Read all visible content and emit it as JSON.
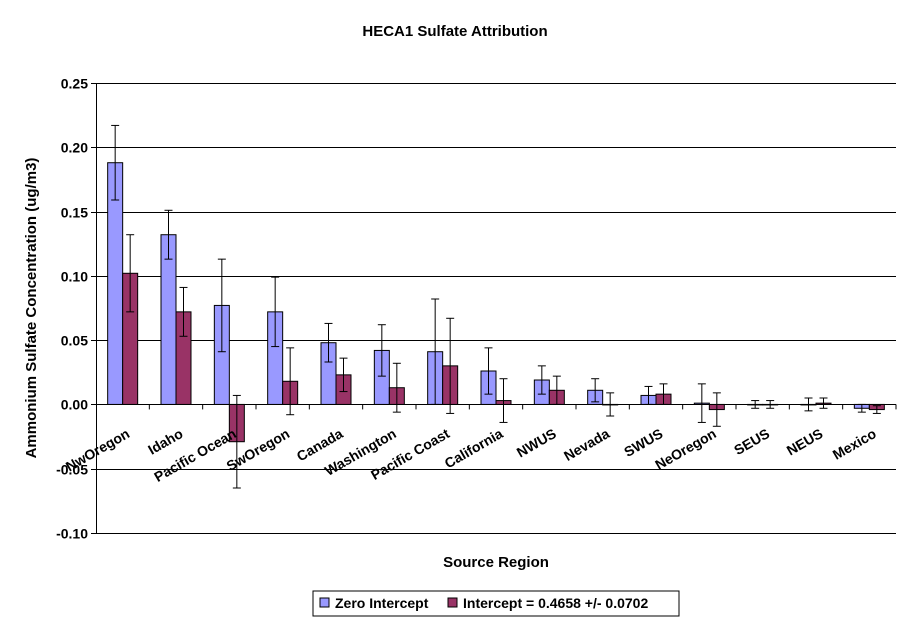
{
  "chart_data": {
    "type": "bar",
    "title": "HECA1 Sulfate Attribution",
    "xlabel": "Source Region",
    "ylabel": "Ammonium Sulfate Concentration (ug/m3)",
    "ylim": [
      -0.1,
      0.25
    ],
    "yticks": [
      "0.25",
      "0.20",
      "0.15",
      "0.10",
      "0.05",
      "0.00",
      "-0.05",
      "-0.10"
    ],
    "ytick_values": [
      0.25,
      0.2,
      0.15,
      0.1,
      0.05,
      0.0,
      -0.05,
      -0.1
    ],
    "grid": true,
    "legend_position": "bottom",
    "categories": [
      "NwOregon",
      "Idaho",
      "Pacific Ocean",
      "SwOregon",
      "Canada",
      "Washington",
      "Pacific Coast",
      "California",
      "NWUS",
      "Nevada",
      "SWUS",
      "NeOregon",
      "SEUS",
      "NEUS",
      "Mexico"
    ],
    "series": [
      {
        "name": "Zero Intercept",
        "color": "#9999ff",
        "values": [
          0.188,
          0.132,
          0.077,
          0.072,
          0.048,
          0.042,
          0.041,
          0.026,
          0.019,
          0.011,
          0.007,
          0.001,
          0.0,
          0.0,
          -0.003
        ],
        "errors": [
          0.029,
          0.019,
          0.036,
          0.027,
          0.015,
          0.02,
          0.041,
          0.018,
          0.011,
          0.009,
          0.007,
          0.015,
          0.003,
          0.005,
          0.003
        ]
      },
      {
        "name": "Intercept = 0.4658 +/- 0.0702",
        "color": "#993366",
        "values": [
          0.102,
          0.072,
          -0.029,
          0.018,
          0.023,
          0.013,
          0.03,
          0.003,
          0.011,
          0.0,
          0.008,
          -0.004,
          0.0,
          0.001,
          -0.004
        ],
        "errors": [
          0.03,
          0.019,
          0.036,
          0.026,
          0.013,
          0.019,
          0.037,
          0.017,
          0.011,
          0.009,
          0.008,
          0.013,
          0.003,
          0.004,
          0.003
        ]
      }
    ]
  }
}
